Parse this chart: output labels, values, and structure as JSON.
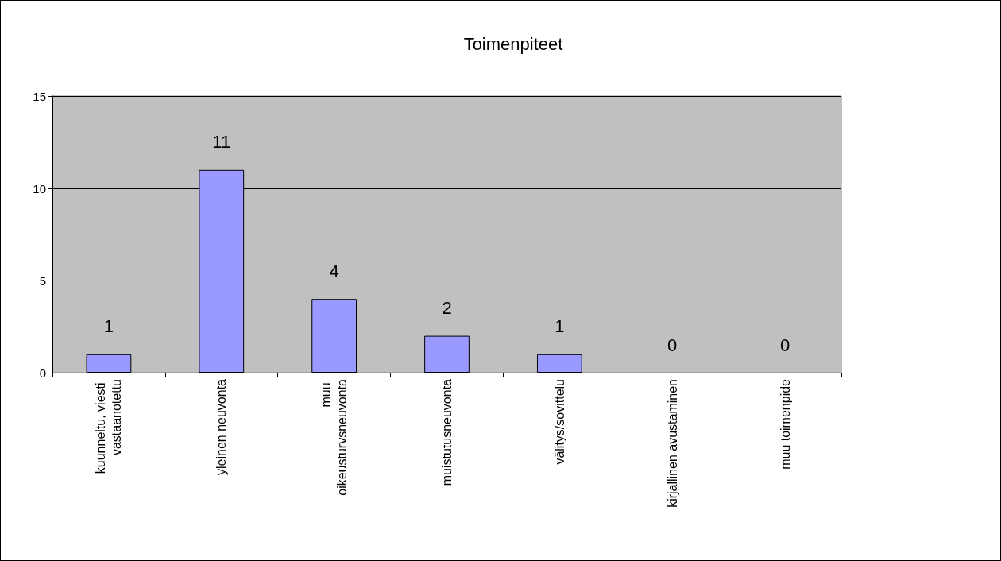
{
  "chart_data": {
    "type": "bar",
    "title": "Toimenpiteet",
    "categories": [
      "kuunneltu, viesti vastaanotettu",
      "yleinen neuvonta",
      "muu oikeusturvsneuvonta",
      "muistutusneuvonta",
      "välitys/sovittelu",
      "kirjallinen avustaminen",
      "muu toimenpide"
    ],
    "values": [
      1,
      11,
      4,
      2,
      1,
      0,
      0
    ],
    "color": "#9999ff",
    "ylim": [
      0,
      15
    ],
    "yticks": [
      0,
      5,
      10,
      15
    ],
    "grid": "y",
    "data_labels": true
  }
}
